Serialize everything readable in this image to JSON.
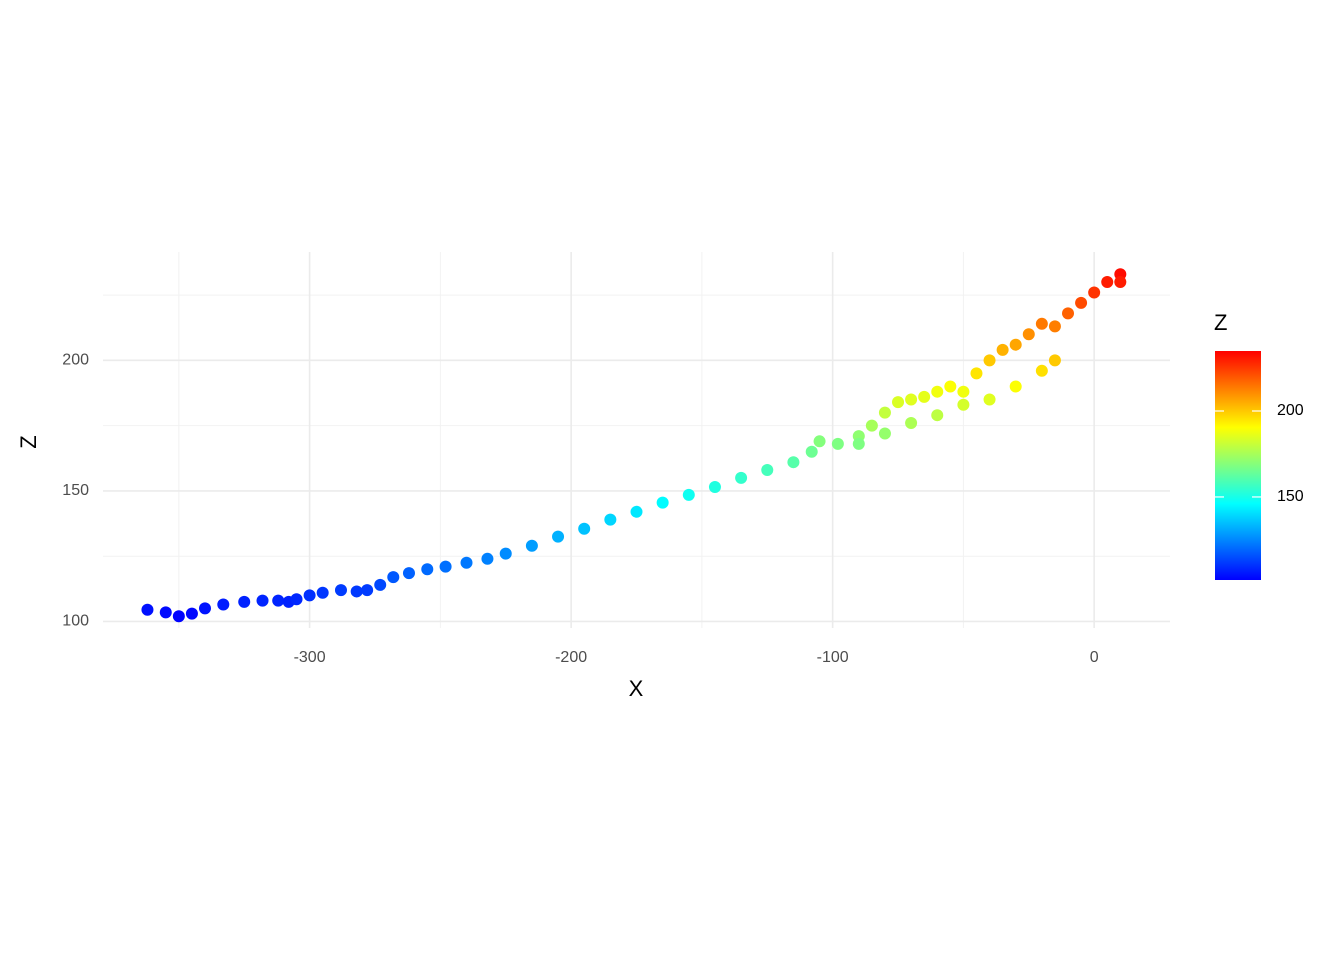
{
  "chart_data": {
    "type": "scatter",
    "x_label": "X",
    "y_label": "Z",
    "legend_title": "Z",
    "x": [
      -362,
      -355,
      -350,
      -345,
      -340,
      -333,
      -325,
      -318,
      -312,
      -308,
      -305,
      -300,
      -295,
      -288,
      -282,
      -278,
      -273,
      -268,
      -262,
      -255,
      -248,
      -240,
      -232,
      -225,
      -215,
      -205,
      -195,
      -185,
      -175,
      -165,
      -155,
      -145,
      -135,
      -125,
      -115,
      -108,
      -105,
      -98,
      -90,
      -85,
      -80,
      -75,
      -70,
      -65,
      -60,
      -55,
      -50,
      -45,
      -40,
      -35,
      -30,
      -25,
      -20,
      -15,
      -10,
      -5,
      0,
      5,
      10,
      -90,
      -80,
      -70,
      -60,
      -50,
      -40,
      -30,
      -20,
      -15,
      10
    ],
    "values": [
      104.5,
      103.5,
      102,
      103,
      105,
      106.5,
      107.5,
      108,
      108,
      107.5,
      108.5,
      110,
      111,
      112,
      111.5,
      112,
      114,
      117,
      118.5,
      120,
      121,
      122.5,
      124,
      126,
      129,
      132.5,
      135.5,
      139,
      142,
      145.5,
      148.5,
      151.5,
      155,
      158,
      161,
      165,
      169,
      168,
      171,
      175,
      180,
      184,
      185,
      186,
      188,
      190,
      188,
      195,
      200,
      204,
      206,
      210,
      214,
      213,
      218,
      222,
      226,
      230,
      233,
      168,
      172,
      176,
      179,
      183,
      185,
      190,
      196,
      200,
      230
    ],
    "xlim": [
      -379,
      29
    ],
    "ylim": [
      97.5,
      241.5
    ],
    "xticks": [
      -300,
      -200,
      -100,
      0
    ],
    "yticks": [
      100,
      150,
      200
    ],
    "xminorticks": [
      -350,
      -250,
      -150,
      -50
    ],
    "yminorticks": [
      125,
      175,
      225
    ],
    "grid": true,
    "colorscale": [
      "#0000ff",
      "#0080ff",
      "#00ffff",
      "#80ff80",
      "#ffff00",
      "#ff8000",
      "#ff0000"
    ],
    "clim": [
      101.7,
      234.9
    ],
    "colorbar_ticks": [
      150,
      200
    ]
  }
}
